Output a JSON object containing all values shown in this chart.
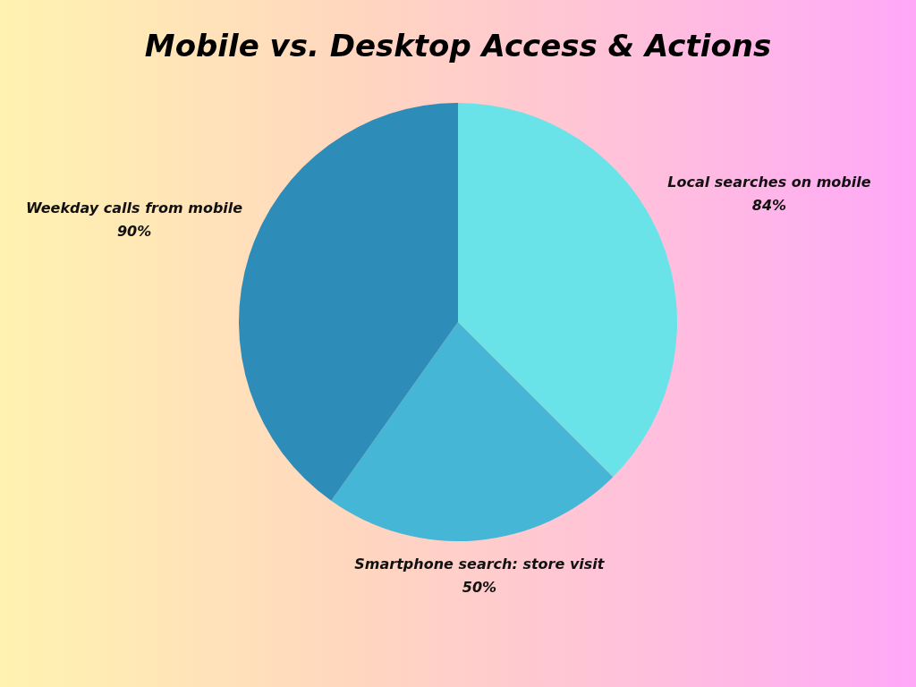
{
  "chart_data": {
    "type": "pie",
    "title": "Mobile vs. Desktop Access & Actions",
    "categories": [
      "Local searches on mobile",
      "Smartphone search: store visit",
      "Weekday calls from mobile"
    ],
    "values": [
      84,
      50,
      90
    ],
    "value_labels": [
      "84%",
      "50%",
      "90%"
    ],
    "colors": [
      "#6ae3e8",
      "#45b6d6",
      "#2e8cb8"
    ]
  }
}
